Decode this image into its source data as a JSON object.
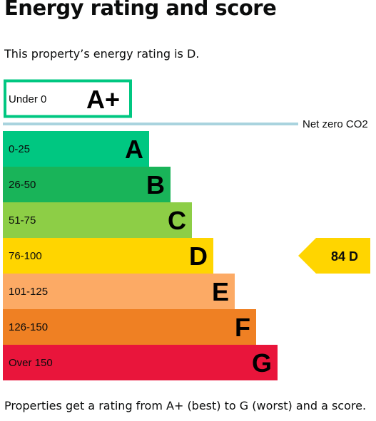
{
  "page": {
    "title": "Energy rating and score",
    "intro": "This property’s energy rating is D.",
    "footer": "Properties get a rating from A+ (best) to G (worst) and a score."
  },
  "chart_data": {
    "type": "bar",
    "net_zero_label": "Net zero CO2",
    "bands": [
      {
        "range": "Under 0",
        "letter": "A+",
        "color": "#ffffff",
        "outline": "#00c781",
        "rank": 0
      },
      {
        "range": "0-25",
        "letter": "A",
        "color": "#00c781",
        "rank": 1
      },
      {
        "range": "26-50",
        "letter": "B",
        "color": "#19b459",
        "rank": 2
      },
      {
        "range": "51-75",
        "letter": "C",
        "color": "#8dce46",
        "rank": 3
      },
      {
        "range": "76-100",
        "letter": "D",
        "color": "#ffd500",
        "rank": 4
      },
      {
        "range": "101-125",
        "letter": "E",
        "color": "#fcaa65",
        "rank": 5
      },
      {
        "range": "126-150",
        "letter": "F",
        "color": "#ef8023",
        "rank": 6
      },
      {
        "range": "Over 150",
        "letter": "G",
        "color": "#e9153b",
        "rank": 7
      }
    ],
    "current": {
      "score": 84,
      "letter": "D",
      "label": "84  D",
      "color": "#ffd500"
    }
  }
}
